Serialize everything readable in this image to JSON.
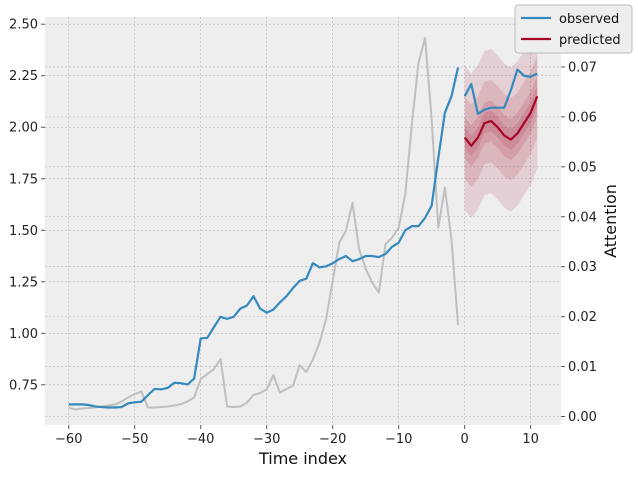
{
  "chart_data": {
    "type": "line",
    "xlabel": "Time index",
    "ylabel_right": "Attention",
    "xlim": [
      -63.6,
      14.6
    ],
    "ylim_left": [
      0.555,
      2.535
    ],
    "ylim_right": [
      -0.0017,
      0.08
    ],
    "x_ticks": [
      -60,
      -50,
      -40,
      -30,
      -20,
      -10,
      0,
      10
    ],
    "y_left_ticks": [
      0.75,
      1.0,
      1.25,
      1.5,
      1.75,
      2.0,
      2.25,
      2.5
    ],
    "y_left_tick_labels": [
      "0.75",
      "1.00",
      "1.25",
      "1.50",
      "1.75",
      "2.00",
      "2.25",
      "2.50"
    ],
    "y_right_ticks": [
      0.0,
      0.01,
      0.02,
      0.03,
      0.04,
      0.05,
      0.06,
      0.07
    ],
    "y_right_tick_labels": [
      "0.00",
      "0.01",
      "0.02",
      "0.03",
      "0.04",
      "0.05",
      "0.06",
      "0.07"
    ],
    "grid": true,
    "legend_position": "top-right",
    "colors": {
      "observed": "#348abd",
      "predicted": "#a60628",
      "attention": "#bcbcbc",
      "background": "#eeeeee"
    },
    "series": [
      {
        "name": "observed",
        "axis": "left",
        "x": [
          -60,
          -59,
          -58,
          -57,
          -56,
          -55,
          -54,
          -53,
          -52,
          -51,
          -50,
          -49,
          -48,
          -47,
          -46,
          -45,
          -44,
          -43,
          -42,
          -41,
          -40,
          -39,
          -38,
          -37,
          -36,
          -35,
          -34,
          -33,
          -32,
          -31,
          -30,
          -29,
          -28,
          -27,
          -26,
          -25,
          -24,
          -23,
          -22,
          -21,
          -20,
          -19,
          -18,
          -17,
          -16,
          -15,
          -14,
          -13,
          -12,
          -11,
          -10,
          -9,
          -8,
          -7,
          -6,
          -5,
          -4,
          -3,
          -2,
          -1
        ],
        "values": [
          0.655,
          0.655,
          0.655,
          0.652,
          0.645,
          0.642,
          0.64,
          0.64,
          0.642,
          0.66,
          0.665,
          0.668,
          0.7,
          0.73,
          0.728,
          0.735,
          0.76,
          0.758,
          0.752,
          0.78,
          0.975,
          0.978,
          1.03,
          1.08,
          1.07,
          1.08,
          1.12,
          1.135,
          1.18,
          1.12,
          1.1,
          1.115,
          1.15,
          1.18,
          1.22,
          1.255,
          1.265,
          1.34,
          1.32,
          1.325,
          1.34,
          1.36,
          1.375,
          1.35,
          1.36,
          1.375,
          1.375,
          1.37,
          1.385,
          1.42,
          1.44,
          1.5,
          1.52,
          1.52,
          1.56,
          1.62,
          1.85,
          2.07,
          2.15,
          2.29
        ]
      },
      {
        "name": "observed",
        "axis": "left",
        "x": [
          0,
          1,
          2,
          3,
          4,
          5,
          6,
          7,
          8,
          9,
          10,
          11
        ],
        "values": [
          2.15,
          2.21,
          2.065,
          2.085,
          2.095,
          2.095,
          2.095,
          2.18,
          2.28,
          2.25,
          2.245,
          2.26
        ]
      },
      {
        "name": "predicted",
        "axis": "left",
        "x": [
          0,
          1,
          2,
          3,
          4,
          5,
          6,
          7,
          8,
          9,
          10,
          11
        ],
        "values": [
          1.95,
          1.91,
          1.95,
          2.02,
          2.03,
          2.0,
          1.96,
          1.94,
          1.97,
          2.02,
          2.07,
          2.15
        ]
      },
      {
        "axis": "right",
        "x": [
          -60,
          -59,
          -58,
          -57,
          -56,
          -55,
          -54,
          -53,
          -52,
          -51,
          -50,
          -49,
          -48,
          -47,
          -46,
          -45,
          -44,
          -43,
          -42,
          -41,
          -40,
          -39,
          -38,
          -37,
          -36,
          -35,
          -34,
          -33,
          -32,
          -31,
          -30,
          -29,
          -28,
          -27,
          -26,
          -25,
          -24,
          -23,
          -22,
          -21,
          -20,
          -19,
          -18,
          -17,
          -16,
          -15,
          -14,
          -13,
          -12,
          -11,
          -10,
          -9,
          -8,
          -7,
          -6,
          -5,
          -4,
          -3,
          -2,
          -1
        ],
        "values": [
          0.0018,
          0.0014,
          0.0016,
          0.0017,
          0.0018,
          0.002,
          0.0022,
          0.0024,
          0.003,
          0.0038,
          0.0045,
          0.005,
          0.0018,
          0.0018,
          0.0019,
          0.002,
          0.0022,
          0.0025,
          0.003,
          0.0038,
          0.0075,
          0.0085,
          0.0095,
          0.0115,
          0.002,
          0.0019,
          0.002,
          0.0028,
          0.0043,
          0.0047,
          0.0054,
          0.0083,
          0.0048,
          0.0055,
          0.0062,
          0.0103,
          0.0089,
          0.0114,
          0.0148,
          0.0195,
          0.0272,
          0.0348,
          0.0372,
          0.0428,
          0.0335,
          0.0296,
          0.0268,
          0.0248,
          0.0345,
          0.0358,
          0.0378,
          0.0445,
          0.0585,
          0.0708,
          0.0758,
          0.0595,
          0.0378,
          0.0458,
          0.0355,
          0.0183
        ]
      }
    ],
    "bands": {
      "x": [
        0,
        1,
        2,
        3,
        4,
        5,
        6,
        7,
        8,
        9,
        10,
        11
      ],
      "center": [
        1.95,
        1.91,
        1.95,
        2.02,
        2.03,
        2.0,
        1.96,
        1.94,
        1.97,
        2.02,
        2.07,
        2.15
      ],
      "half_widths": [
        0.05,
        0.1,
        0.2,
        0.35
      ]
    }
  }
}
